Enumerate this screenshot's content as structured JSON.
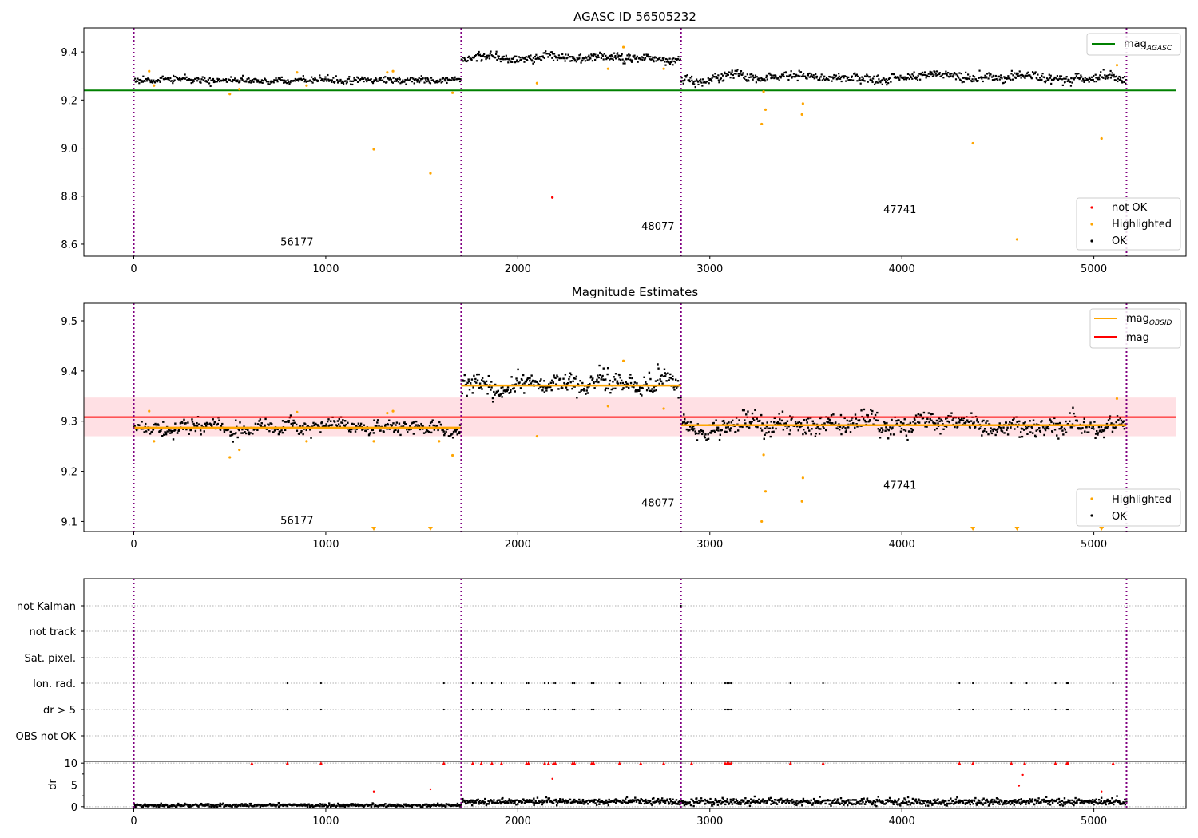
{
  "chart_data": [
    {
      "type": "scatter",
      "title": "AGASC ID 56505232",
      "xlim": [
        -260,
        5480
      ],
      "ylim": [
        8.55,
        9.5
      ],
      "xticks": [
        0,
        1000,
        2000,
        3000,
        4000,
        5000
      ],
      "yticks": [
        8.6,
        8.8,
        9.0,
        9.2,
        9.4
      ],
      "yticks_labels": [
        "8.6",
        "8.8",
        "9.0",
        "9.2",
        "9.4"
      ],
      "obs_boundaries": [
        0,
        1705,
        2850,
        5170
      ],
      "obsids": [
        {
          "label": "56177",
          "x": 850,
          "y": 8.595
        },
        {
          "label": "48077",
          "x": 2730,
          "y": 8.66
        },
        {
          "label": "47741",
          "x": 3990,
          "y": 8.73
        }
      ],
      "reference_line": {
        "name": "mag_AGASC",
        "y": 9.24,
        "x": [
          -260,
          5430
        ],
        "color": "#008000"
      },
      "segments": [
        {
          "x0": 0,
          "x1": 1705,
          "mean": 9.285,
          "spread": 0.012,
          "n": 420
        },
        {
          "x0": 1705,
          "x1": 2850,
          "mean": 9.373,
          "spread": 0.016,
          "n": 320
        },
        {
          "x0": 2850,
          "x1": 5170,
          "mean": 9.293,
          "spread": 0.016,
          "n": 620
        }
      ],
      "highlighted": [
        {
          "x": 80,
          "y": 9.32
        },
        {
          "x": 105,
          "y": 9.26
        },
        {
          "x": 500,
          "y": 9.225
        },
        {
          "x": 550,
          "y": 9.245
        },
        {
          "x": 850,
          "y": 9.315
        },
        {
          "x": 900,
          "y": 9.26
        },
        {
          "x": 1250,
          "y": 8.995
        },
        {
          "x": 1320,
          "y": 9.315
        },
        {
          "x": 1350,
          "y": 9.32
        },
        {
          "x": 1545,
          "y": 8.895
        },
        {
          "x": 1660,
          "y": 9.23
        },
        {
          "x": 2100,
          "y": 9.27
        },
        {
          "x": 2470,
          "y": 9.33
        },
        {
          "x": 2550,
          "y": 9.42
        },
        {
          "x": 2760,
          "y": 9.33
        },
        {
          "x": 3270,
          "y": 9.1
        },
        {
          "x": 3290,
          "y": 9.16
        },
        {
          "x": 3280,
          "y": 9.235
        },
        {
          "x": 3480,
          "y": 9.14
        },
        {
          "x": 3485,
          "y": 9.185
        },
        {
          "x": 4370,
          "y": 9.02
        },
        {
          "x": 4600,
          "y": 8.62
        },
        {
          "x": 5040,
          "y": 9.04
        },
        {
          "x": 5120,
          "y": 9.345
        }
      ],
      "not_ok": [
        {
          "x": 2180,
          "y": 8.795
        }
      ],
      "legend_lines": [
        "mag",
        "AGASC"
      ],
      "legend_points": [
        "not OK",
        "Highlighted",
        "OK"
      ],
      "colors": {
        "ok": "#000000",
        "highlighted": "#ffa500",
        "not_ok": "#ff0000",
        "boundary": "#800080"
      }
    },
    {
      "type": "scatter",
      "title": "Magnitude Estimates",
      "xlim": [
        -260,
        5480
      ],
      "ylim": [
        9.08,
        9.535
      ],
      "xticks": [
        0,
        1000,
        2000,
        3000,
        4000,
        5000
      ],
      "yticks": [
        9.1,
        9.2,
        9.3,
        9.4,
        9.5
      ],
      "yticks_labels": [
        "9.1",
        "9.2",
        "9.3",
        "9.4",
        "9.5"
      ],
      "obs_boundaries": [
        0,
        1705,
        2850,
        5170
      ],
      "obsids": [
        {
          "label": "56177",
          "x": 850,
          "y": 9.095
        },
        {
          "label": "48077",
          "x": 2730,
          "y": 9.13
        },
        {
          "label": "47741",
          "x": 3990,
          "y": 9.165
        }
      ],
      "mag_line": {
        "name": "mag",
        "y": 9.308,
        "band": [
          9.27,
          9.347
        ],
        "x": [
          -260,
          5430
        ],
        "color": "#ff0000",
        "band_color": "#ffe0e4"
      },
      "obsid_mags": [
        {
          "x0": 0,
          "x1": 1705,
          "y": 9.287
        },
        {
          "x0": 1705,
          "x1": 2850,
          "y": 9.371
        },
        {
          "x0": 2850,
          "x1": 5170,
          "y": 9.292
        }
      ],
      "segments": [
        {
          "x0": 0,
          "x1": 1705,
          "mean": 9.287,
          "spread": 0.012,
          "n": 420
        },
        {
          "x0": 1705,
          "x1": 2850,
          "mean": 9.371,
          "spread": 0.017,
          "n": 320
        },
        {
          "x0": 2850,
          "x1": 5170,
          "mean": 9.292,
          "spread": 0.018,
          "n": 620
        }
      ],
      "highlighted": [
        {
          "x": 80,
          "y": 9.32
        },
        {
          "x": 105,
          "y": 9.26
        },
        {
          "x": 500,
          "y": 9.228
        },
        {
          "x": 550,
          "y": 9.243
        },
        {
          "x": 850,
          "y": 9.318
        },
        {
          "x": 900,
          "y": 9.26
        },
        {
          "x": 1250,
          "y": 9.26
        },
        {
          "x": 1320,
          "y": 9.316
        },
        {
          "x": 1350,
          "y": 9.32
        },
        {
          "x": 1590,
          "y": 9.26
        },
        {
          "x": 1660,
          "y": 9.232
        },
        {
          "x": 2100,
          "y": 9.27
        },
        {
          "x": 2470,
          "y": 9.33
        },
        {
          "x": 2550,
          "y": 9.42
        },
        {
          "x": 2760,
          "y": 9.325
        },
        {
          "x": 3270,
          "y": 9.1
        },
        {
          "x": 3290,
          "y": 9.16
        },
        {
          "x": 3280,
          "y": 9.233
        },
        {
          "x": 3480,
          "y": 9.14
        },
        {
          "x": 3485,
          "y": 9.187
        },
        {
          "x": 5120,
          "y": 9.345
        }
      ],
      "clipped_markers": [
        1250,
        1545,
        4370,
        4600,
        5040
      ],
      "legend_lines": [
        "mag",
        "OBSID",
        "mag"
      ],
      "legend_points": [
        "Highlighted",
        "OK"
      ],
      "colors": {
        "ok": "#000000",
        "highlighted": "#ffa500",
        "obsid_mag": "#ffa500",
        "boundary": "#800080"
      }
    },
    {
      "type": "scatter",
      "xlim": [
        -260,
        5480
      ],
      "xticks": [
        0,
        1000,
        2000,
        3000,
        4000,
        5000
      ],
      "obs_boundaries": [
        0,
        1705,
        2850,
        5170
      ],
      "flag_labels": [
        "not Kalman",
        "not track",
        "Sat. pixel.",
        "Ion. rad.",
        "dr > 5",
        "OBS not OK"
      ],
      "flag_points": {
        "not Kalman": [
          2850
        ],
        "not track": [],
        "Sat. pixel.": [],
        "Ion. rad.": [
          800,
          975,
          1615,
          1765,
          1810,
          1865,
          1915,
          2045,
          2055,
          2140,
          2160,
          2185,
          2195,
          2285,
          2295,
          2385,
          2395,
          2530,
          2640,
          2760,
          2905,
          3080,
          3090,
          3100,
          3110,
          3420,
          3590,
          4300,
          4370,
          4570,
          4650,
          4800,
          4860,
          4865,
          5100
        ],
        "dr > 5": [
          615,
          800,
          975,
          1615,
          1765,
          1810,
          1865,
          1915,
          2045,
          2055,
          2140,
          2160,
          2185,
          2195,
          2285,
          2295,
          2385,
          2395,
          2530,
          2640,
          2760,
          2905,
          3080,
          3090,
          3100,
          3110,
          3420,
          3590,
          4300,
          4370,
          4570,
          4640,
          4660,
          4800,
          4860,
          4865,
          5100
        ],
        "OBS not OK": []
      },
      "dr": {
        "ylabel": "dr",
        "yticks": [
          0,
          5,
          10
        ],
        "yticks_labels": [
          "0",
          "5",
          "10"
        ],
        "ylim": [
          -0.4,
          10.4
        ],
        "cap": 10,
        "capped_x": [
          615,
          800,
          975,
          1615,
          1765,
          1810,
          1865,
          1915,
          2045,
          2055,
          2140,
          2160,
          2185,
          2195,
          2285,
          2295,
          2385,
          2395,
          2530,
          2640,
          2760,
          2905,
          3080,
          3090,
          3100,
          3110,
          3420,
          3590,
          4300,
          4370,
          4570,
          4640,
          4800,
          4860,
          4865,
          5100
        ],
        "outliers": [
          {
            "x": 1250,
            "y": 3.5
          },
          {
            "x": 1545,
            "y": 4.0
          },
          {
            "x": 2180,
            "y": 6.4
          },
          {
            "x": 4610,
            "y": 4.8
          },
          {
            "x": 4630,
            "y": 7.3
          },
          {
            "x": 5040,
            "y": 3.5
          }
        ],
        "segments": [
          {
            "x0": 0,
            "x1": 1705,
            "mean": 0.3,
            "spread": 0.2,
            "n": 420
          },
          {
            "x0": 1705,
            "x1": 2850,
            "mean": 1.2,
            "spread": 0.35,
            "n": 320
          },
          {
            "x0": 2850,
            "x1": 5170,
            "mean": 1.1,
            "spread": 0.4,
            "n": 620
          }
        ]
      },
      "colors": {
        "ok": "#000000",
        "capped": "#ff0000",
        "boundary": "#800080"
      }
    }
  ]
}
